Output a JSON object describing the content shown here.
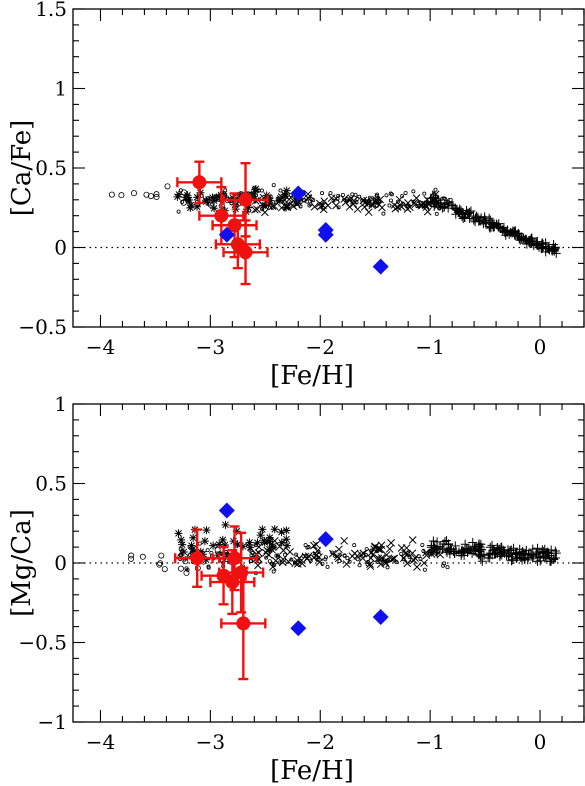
{
  "chart_data": [
    {
      "type": "scatter",
      "xlabel": "[Fe/H]",
      "ylabel": "[Ca/Fe]",
      "xlim": [
        -4.25,
        0.4
      ],
      "ylim": [
        -0.5,
        1.5
      ],
      "xticks": [
        "−4",
        "−3",
        "−2",
        "−1",
        "0"
      ],
      "xtick_values": [
        -4,
        -3,
        -2,
        -1,
        0
      ],
      "yticks": [
        "−0.5",
        "0",
        "0.5",
        "1",
        "1.5"
      ],
      "ytick_values": [
        -0.5,
        0,
        0.5,
        1,
        1.5
      ],
      "reference_line": 0,
      "grid": false,
      "legend": "none",
      "colors": {
        "red": "#f01010",
        "blue": "#1010ee",
        "grey": "#000000"
      },
      "series": [
        {
          "marker": "red-circle-errorbar",
          "points": [
            {
              "x": -3.1,
              "y": 0.41,
              "xerr": 0.2,
              "yerr": 0.13
            },
            {
              "x": -2.9,
              "y": 0.2,
              "xerr": 0.2,
              "yerr": 0.18
            },
            {
              "x": -2.78,
              "y": 0.14,
              "xerr": 0.2,
              "yerr": 0.2
            },
            {
              "x": -2.75,
              "y": 0.02,
              "xerr": 0.2,
              "yerr": 0.15
            },
            {
              "x": -2.68,
              "y": 0.3,
              "xerr": 0.2,
              "yerr": 0.23
            },
            {
              "x": -2.68,
              "y": -0.03,
              "xerr": 0.2,
              "yerr": 0.2
            }
          ]
        },
        {
          "marker": "blue-diamond",
          "points": [
            {
              "x": -2.85,
              "y": 0.08
            },
            {
              "x": -2.2,
              "y": 0.34
            },
            {
              "x": -1.95,
              "y": 0.11
            },
            {
              "x": -1.95,
              "y": 0.08
            },
            {
              "x": -1.45,
              "y": -0.12
            }
          ]
        }
      ]
    },
    {
      "type": "scatter",
      "xlabel": "[Fe/H]",
      "ylabel": "[Mg/Ca]",
      "xlim": [
        -4.25,
        0.4
      ],
      "ylim": [
        -1,
        1
      ],
      "xticks": [
        "−4",
        "−3",
        "−2",
        "−1",
        "0"
      ],
      "xtick_values": [
        -4,
        -3,
        -2,
        -1,
        0
      ],
      "yticks": [
        "−1",
        "−0.5",
        "0",
        "0.5",
        "1"
      ],
      "ytick_values": [
        -1,
        -0.5,
        0,
        0.5,
        1
      ],
      "reference_line": 0,
      "grid": false,
      "legend": "none",
      "colors": {
        "red": "#f01010",
        "blue": "#1010ee",
        "grey": "#000000"
      },
      "series": [
        {
          "marker": "red-circle-errorbar",
          "points": [
            {
              "x": -3.12,
              "y": 0.03,
              "xerr": 0.2,
              "yerr": 0.18
            },
            {
              "x": -2.88,
              "y": -0.08,
              "xerr": 0.2,
              "yerr": 0.18
            },
            {
              "x": -2.8,
              "y": -0.12,
              "xerr": 0.2,
              "yerr": 0.2
            },
            {
              "x": -2.78,
              "y": 0.03,
              "xerr": 0.2,
              "yerr": 0.2
            },
            {
              "x": -2.72,
              "y": -0.06,
              "xerr": 0.2,
              "yerr": 0.25
            },
            {
              "x": -2.7,
              "y": -0.38,
              "xerr": 0.2,
              "yerr": 0.35
            }
          ]
        },
        {
          "marker": "blue-diamond",
          "points": [
            {
              "x": -2.85,
              "y": 0.33
            },
            {
              "x": -2.2,
              "y": -0.41
            },
            {
              "x": -1.95,
              "y": 0.15
            },
            {
              "x": -1.45,
              "y": -0.34
            }
          ]
        }
      ]
    }
  ]
}
